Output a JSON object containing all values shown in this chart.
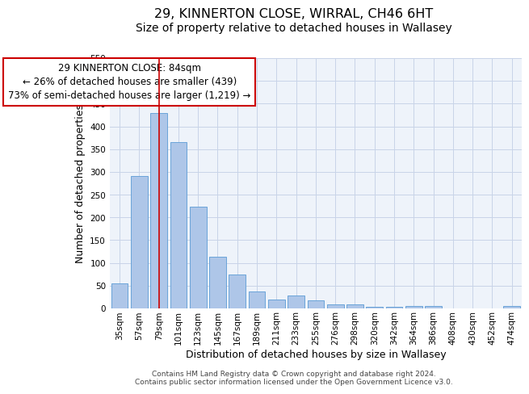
{
  "title": "29, KINNERTON CLOSE, WIRRAL, CH46 6HT",
  "subtitle": "Size of property relative to detached houses in Wallasey",
  "xlabel": "Distribution of detached houses by size in Wallasey",
  "ylabel": "Number of detached properties",
  "bar_labels": [
    "35sqm",
    "57sqm",
    "79sqm",
    "101sqm",
    "123sqm",
    "145sqm",
    "167sqm",
    "189sqm",
    "211sqm",
    "233sqm",
    "255sqm",
    "276sqm",
    "298sqm",
    "320sqm",
    "342sqm",
    "364sqm",
    "386sqm",
    "408sqm",
    "430sqm",
    "452sqm",
    "474sqm"
  ],
  "bar_values": [
    55,
    291,
    429,
    365,
    224,
    113,
    75,
    38,
    20,
    29,
    17,
    9,
    9,
    4,
    4,
    6,
    6,
    0,
    0,
    0,
    5
  ],
  "bar_color": "#aec6e8",
  "bar_edgecolor": "#5b9bd5",
  "vline_x": 2,
  "vline_color": "#cc0000",
  "annotation_line1": "29 KINNERTON CLOSE: 84sqm",
  "annotation_line2": "← 26% of detached houses are smaller (439)",
  "annotation_line3": "73% of semi-detached houses are larger (1,219) →",
  "annotation_box_edgecolor": "#cc0000",
  "annotation_box_facecolor": "#ffffff",
  "ylim": [
    0,
    550
  ],
  "yticks": [
    0,
    50,
    100,
    150,
    200,
    250,
    300,
    350,
    400,
    450,
    500,
    550
  ],
  "footer_line1": "Contains HM Land Registry data © Crown copyright and database right 2024.",
  "footer_line2": "Contains public sector information licensed under the Open Government Licence v3.0.",
  "background_color": "#ffffff",
  "plot_bg_color": "#eef3fa",
  "grid_color": "#c8d4e8",
  "title_fontsize": 11.5,
  "subtitle_fontsize": 10,
  "axis_label_fontsize": 9,
  "tick_fontsize": 7.5,
  "annotation_fontsize": 8.5,
  "footer_fontsize": 6.5
}
